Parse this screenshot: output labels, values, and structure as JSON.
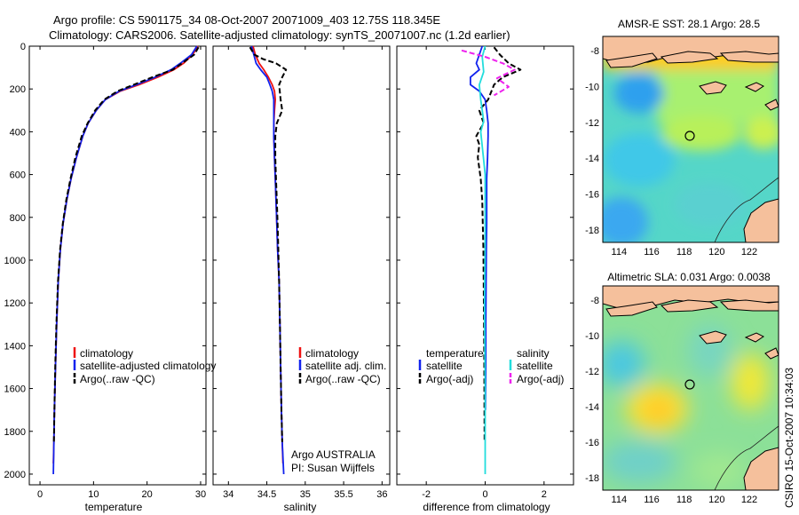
{
  "header": {
    "title_line1": "Argo profile: CS 5901175_34 08-Oct-2007 20071009_403 12.75S 118.345E",
    "title_line2": "Climatology: CARS2006. Satellite-adjusted climatology: synTS_20071007.nc (1.2d earlier)"
  },
  "side_label": "CSIRO 15-Oct-2007 10:34:03",
  "colors": {
    "climatology": "#ee1111",
    "satellite": "#1122ee",
    "argo": "#000000",
    "satellite_salinity": "#22dddd",
    "argo_salinity": "#ee22ee"
  },
  "chart_data": [
    {
      "type": "line",
      "id": "temperature",
      "xlabel": "temperature",
      "ylabel": "",
      "xlim": [
        -2,
        31
      ],
      "ylim": [
        2050,
        0
      ],
      "xticks": [
        "0",
        "10",
        "20",
        "30"
      ],
      "xtick_values": [
        0,
        10,
        20,
        30
      ],
      "yticks": [
        "0",
        "200",
        "400",
        "600",
        "800",
        "1000",
        "1200",
        "1400",
        "1600",
        "1800",
        "2000"
      ],
      "ytick_values": [
        0,
        200,
        400,
        600,
        800,
        1000,
        1200,
        1400,
        1600,
        1800,
        2000
      ],
      "legend": [
        "climatology",
        "satellite-adjusted climatology",
        "Argo(..raw -QC)"
      ],
      "series": [
        {
          "name": "climatology",
          "color": "#ee1111",
          "dash": false,
          "x": [
            29.5,
            28.5,
            26.8,
            25.0,
            22.0,
            18.5,
            15.0,
            12.2,
            10.5,
            9.0,
            8.0,
            6.8,
            5.8,
            5.0,
            4.3,
            3.8,
            3.4,
            3.1,
            2.9,
            2.7,
            2.6,
            2.5
          ],
          "y": [
            0,
            40,
            80,
            110,
            145,
            180,
            210,
            250,
            300,
            360,
            420,
            520,
            620,
            720,
            830,
            950,
            1100,
            1300,
            1500,
            1700,
            1850,
            1950
          ]
        },
        {
          "name": "satellite-adjusted climatology",
          "color": "#1122ee",
          "dash": false,
          "x": [
            29.3,
            28.3,
            26.2,
            24.5,
            21.5,
            18.0,
            14.8,
            12.2,
            10.5,
            9.0,
            8.0,
            6.8,
            5.8,
            5.0,
            4.3,
            3.8,
            3.4,
            3.1,
            2.9,
            2.7,
            2.6,
            2.5
          ],
          "y": [
            0,
            40,
            80,
            110,
            145,
            180,
            210,
            250,
            300,
            360,
            420,
            520,
            620,
            720,
            830,
            950,
            1100,
            1300,
            1500,
            1700,
            1850,
            2000
          ]
        },
        {
          "name": "Argo(..raw -QC)",
          "color": "#000000",
          "dash": true,
          "x": [
            29.6,
            28.8,
            26.5,
            24.8,
            21.0,
            17.5,
            14.5,
            12.0,
            10.3,
            8.9,
            7.8,
            6.6,
            5.7,
            4.9,
            4.25,
            3.75,
            3.35,
            3.05,
            2.85,
            2.7,
            2.6
          ],
          "y": [
            5,
            40,
            80,
            110,
            145,
            180,
            210,
            250,
            300,
            360,
            420,
            520,
            620,
            720,
            830,
            950,
            1100,
            1300,
            1500,
            1700,
            1850
          ]
        }
      ]
    },
    {
      "type": "line",
      "id": "salinity",
      "xlabel": "salinity",
      "ylabel": "",
      "xlim": [
        33.8,
        36.1
      ],
      "ylim": [
        2050,
        0
      ],
      "xticks": [
        "34",
        "34.5",
        "35",
        "35.5",
        "36"
      ],
      "xtick_values": [
        34,
        34.5,
        35,
        35.5,
        36
      ],
      "legend": [
        "climatology",
        "satellite adj. clim.",
        "Argo(..raw -QC)"
      ],
      "annotations": [
        "Argo AUSTRALIA",
        "PI: Susan Wijffels"
      ],
      "series": [
        {
          "name": "climatology",
          "color": "#ee1111",
          "dash": false,
          "x": [
            34.32,
            34.35,
            34.4,
            34.46,
            34.52,
            34.57,
            34.6,
            34.61,
            34.6,
            34.59,
            34.59,
            34.6,
            34.61,
            34.62,
            34.63,
            34.64,
            34.66,
            34.67,
            34.68,
            34.69,
            34.7,
            34.71
          ],
          "y": [
            0,
            40,
            80,
            110,
            145,
            180,
            210,
            250,
            300,
            360,
            420,
            520,
            620,
            720,
            830,
            950,
            1100,
            1300,
            1500,
            1700,
            1850,
            1950
          ]
        },
        {
          "name": "satellite adj. clim.",
          "color": "#1122ee",
          "dash": false,
          "x": [
            34.3,
            34.33,
            34.36,
            34.42,
            34.5,
            34.54,
            34.57,
            34.59,
            34.59,
            34.59,
            34.59,
            34.6,
            34.61,
            34.62,
            34.63,
            34.64,
            34.66,
            34.67,
            34.68,
            34.69,
            34.7,
            34.72
          ],
          "y": [
            0,
            40,
            80,
            110,
            145,
            180,
            210,
            250,
            300,
            360,
            420,
            520,
            620,
            720,
            830,
            950,
            1100,
            1300,
            1500,
            1700,
            1850,
            2000
          ]
        },
        {
          "name": "Argo(..raw -QC)",
          "color": "#000000",
          "dash": true,
          "x": [
            34.28,
            34.34,
            34.45,
            34.62,
            34.75,
            34.7,
            34.66,
            34.68,
            34.7,
            34.63,
            34.61,
            34.61,
            34.62,
            34.63,
            34.64,
            34.65,
            34.66,
            34.67,
            34.68,
            34.69,
            34.7
          ],
          "y": [
            5,
            40,
            60,
            80,
            110,
            145,
            180,
            250,
            300,
            360,
            420,
            520,
            620,
            720,
            830,
            950,
            1100,
            1300,
            1500,
            1700,
            1850
          ]
        }
      ]
    },
    {
      "type": "line",
      "id": "difference",
      "xlabel": "difference from climatology",
      "ylabel": "",
      "xlim": [
        -3.0,
        3.0
      ],
      "ylim": [
        2050,
        0
      ],
      "xticks": [
        "-2",
        "0",
        "2"
      ],
      "xtick_values": [
        -2,
        0,
        2
      ],
      "legend_left": [
        "temperature",
        "satellite",
        "Argo(-adj)"
      ],
      "legend_right": [
        "salinity",
        "satellite",
        "Argo(-adj)"
      ],
      "series": [
        {
          "name": "satellite",
          "group": "temperature",
          "color": "#1122ee",
          "dash": false,
          "x": [
            -0.1,
            -0.2,
            -0.3,
            -0.2,
            -0.5,
            -0.5,
            -0.2,
            0.0,
            0.05,
            0.1,
            0.1,
            0.08,
            0.05,
            0.05,
            0.05,
            0.04,
            0.03,
            0.02,
            0.02,
            0.01
          ],
          "y": [
            0,
            40,
            80,
            110,
            145,
            180,
            210,
            250,
            300,
            360,
            420,
            520,
            620,
            720,
            830,
            950,
            1100,
            1300,
            1500,
            1700
          ]
        },
        {
          "name": "Argo(-adj)",
          "group": "temperature",
          "color": "#000000",
          "dash": true,
          "x": [
            0.3,
            0.5,
            0.8,
            1.2,
            0.6,
            0.3,
            0.1,
            -0.2,
            -0.05,
            -0.3,
            -0.2,
            -0.25,
            -0.15,
            -0.1,
            -0.08,
            -0.06,
            -0.05,
            -0.04,
            -0.03,
            -0.02
          ],
          "y": [
            5,
            40,
            80,
            110,
            145,
            180,
            250,
            300,
            360,
            420,
            460,
            520,
            620,
            720,
            830,
            950,
            1100,
            1300,
            1500,
            1850
          ]
        },
        {
          "name": "satellite",
          "group": "salinity",
          "color": "#22dddd",
          "dash": false,
          "x": [
            0.0,
            -0.1,
            -0.05,
            -0.2,
            -0.15,
            -0.1,
            -0.05,
            -0.15,
            0.0,
            0.0,
            -0.02,
            0.0,
            0.0
          ],
          "y": [
            0,
            50,
            120,
            180,
            250,
            300,
            350,
            400,
            600,
            900,
            1200,
            1600,
            2000
          ]
        },
        {
          "name": "Argo(-adj)",
          "group": "salinity",
          "color": "#ee22ee",
          "dash": true,
          "x": [
            -0.8,
            0.0,
            0.6,
            1.0,
            0.4,
            0.8,
            0.3
          ],
          "y": [
            20,
            50,
            80,
            110,
            150,
            190,
            230
          ]
        }
      ]
    },
    {
      "type": "heatmap",
      "id": "sst_map",
      "title": "AMSR-E SST: 28.1 Argo: 28.5",
      "xlim": [
        113,
        123.8
      ],
      "ylim": [
        -18.7,
        -7.2
      ],
      "xticks": [
        "114",
        "116",
        "118",
        "120",
        "122"
      ],
      "xtick_values": [
        114,
        116,
        118,
        120,
        122
      ],
      "yticks": [
        "-8",
        "-10",
        "-12",
        "-14",
        "-16",
        "-18"
      ],
      "ytick_values": [
        -8,
        -10,
        -12,
        -14,
        -16,
        -18
      ],
      "marker": {
        "lon": 118.345,
        "lat": -12.75
      }
    },
    {
      "type": "heatmap",
      "id": "sla_map",
      "title": "Altimetric SLA: 0.031 Argo: 0.0038",
      "xlim": [
        113,
        123.8
      ],
      "ylim": [
        -18.7,
        -7.2
      ],
      "xticks": [
        "114",
        "116",
        "118",
        "120",
        "122"
      ],
      "xtick_values": [
        114,
        116,
        118,
        120,
        122
      ],
      "yticks": [
        "-8",
        "-10",
        "-12",
        "-14",
        "-16",
        "-18"
      ],
      "ytick_values": [
        -8,
        -10,
        -12,
        -14,
        -16,
        -18
      ],
      "marker": {
        "lon": 118.345,
        "lat": -12.75
      }
    }
  ]
}
